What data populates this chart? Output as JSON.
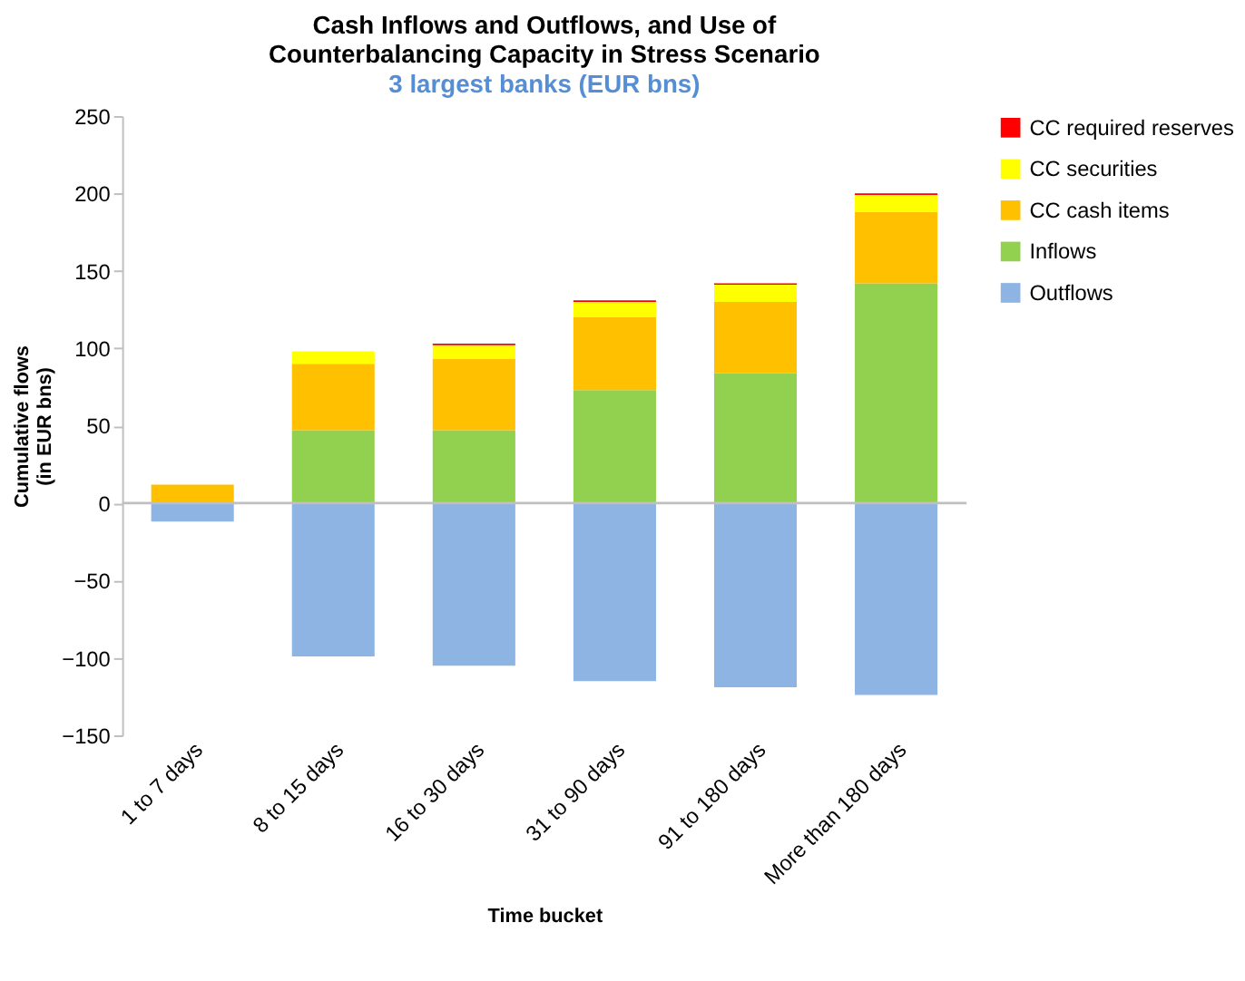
{
  "chart_data": {
    "type": "bar",
    "title": "Cash Inflows and Outflows, and Use of\nCounterbalancing Capacity in Stress Scenario",
    "subtitle": "3 largest banks (EUR bns)",
    "xlabel": "Time bucket",
    "ylabel": "Cumulative flows\n(in EUR bns)",
    "categories": [
      "1 to 7 days",
      "8 to 15 days",
      "16 to 30 days",
      "31 to 90 days",
      "91 to 180 days",
      "More than 180 days"
    ],
    "stacked": true,
    "legend": "right",
    "grid": false,
    "ref_lines": [
      {
        "axis": "y",
        "value": 0,
        "color": "#bfbfbf"
      }
    ],
    "ylim": [
      -150,
      250
    ],
    "yticks": [
      -150,
      -100,
      -50,
      0,
      50,
      100,
      150,
      200,
      250
    ],
    "series": [
      {
        "name": "Outflows",
        "color": "#8eb4e3",
        "values": [
          -12,
          -99,
          -105,
          -115,
          -119,
          -124
        ]
      },
      {
        "name": "Inflows",
        "color": "#92d050",
        "values": [
          0,
          47,
          47,
          73,
          84,
          142
        ]
      },
      {
        "name": "CC cash items",
        "color": "#ffc000",
        "values": [
          12,
          43,
          46,
          47,
          46,
          46
        ]
      },
      {
        "name": "CC securities",
        "color": "#ffff00",
        "values": [
          0,
          8,
          9,
          10,
          11,
          11
        ]
      },
      {
        "name": "CC required reserves",
        "color": "#ff0000",
        "values": [
          0,
          0,
          1,
          1,
          1,
          1
        ]
      }
    ]
  }
}
